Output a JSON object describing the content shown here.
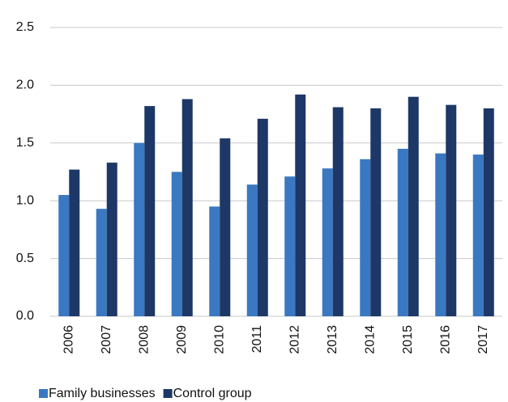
{
  "chart_data": {
    "type": "bar",
    "categories": [
      "2006",
      "2007",
      "2008",
      "2009",
      "2010",
      "2011",
      "2012",
      "2013",
      "2014",
      "2015",
      "2016",
      "2017"
    ],
    "series": [
      {
        "name": "Family businesses",
        "color": "#3a78c2",
        "values": [
          1.05,
          0.93,
          1.5,
          1.25,
          0.95,
          1.14,
          1.21,
          1.28,
          1.36,
          1.45,
          1.41,
          1.4
        ]
      },
      {
        "name": "Control group",
        "color": "#1d3866",
        "values": [
          1.27,
          1.33,
          1.82,
          1.88,
          1.54,
          1.71,
          1.92,
          1.81,
          1.8,
          1.9,
          1.83,
          1.8
        ]
      }
    ],
    "ylim": [
      0,
      2.5
    ],
    "yticks": [
      {
        "value": 0,
        "label": "0.0"
      },
      0.5,
      {
        "value": 1,
        "label": "1.0"
      },
      1.5,
      {
        "value": 2,
        "label": "2.0"
      },
      2.5
    ],
    "grid": true
  }
}
